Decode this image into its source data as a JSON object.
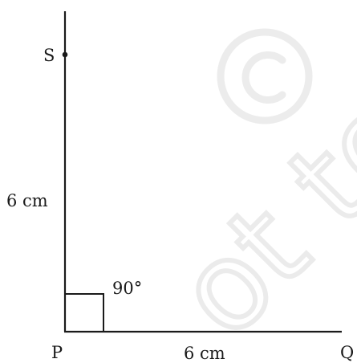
{
  "points": {
    "s": "S",
    "p": "P",
    "q": "Q"
  },
  "measurements": {
    "ps_length": "6 cm",
    "pq_length": "6 cm",
    "angle": "90°"
  },
  "colors": {
    "stroke": "#1a1a1a",
    "watermark": "#ececec"
  }
}
